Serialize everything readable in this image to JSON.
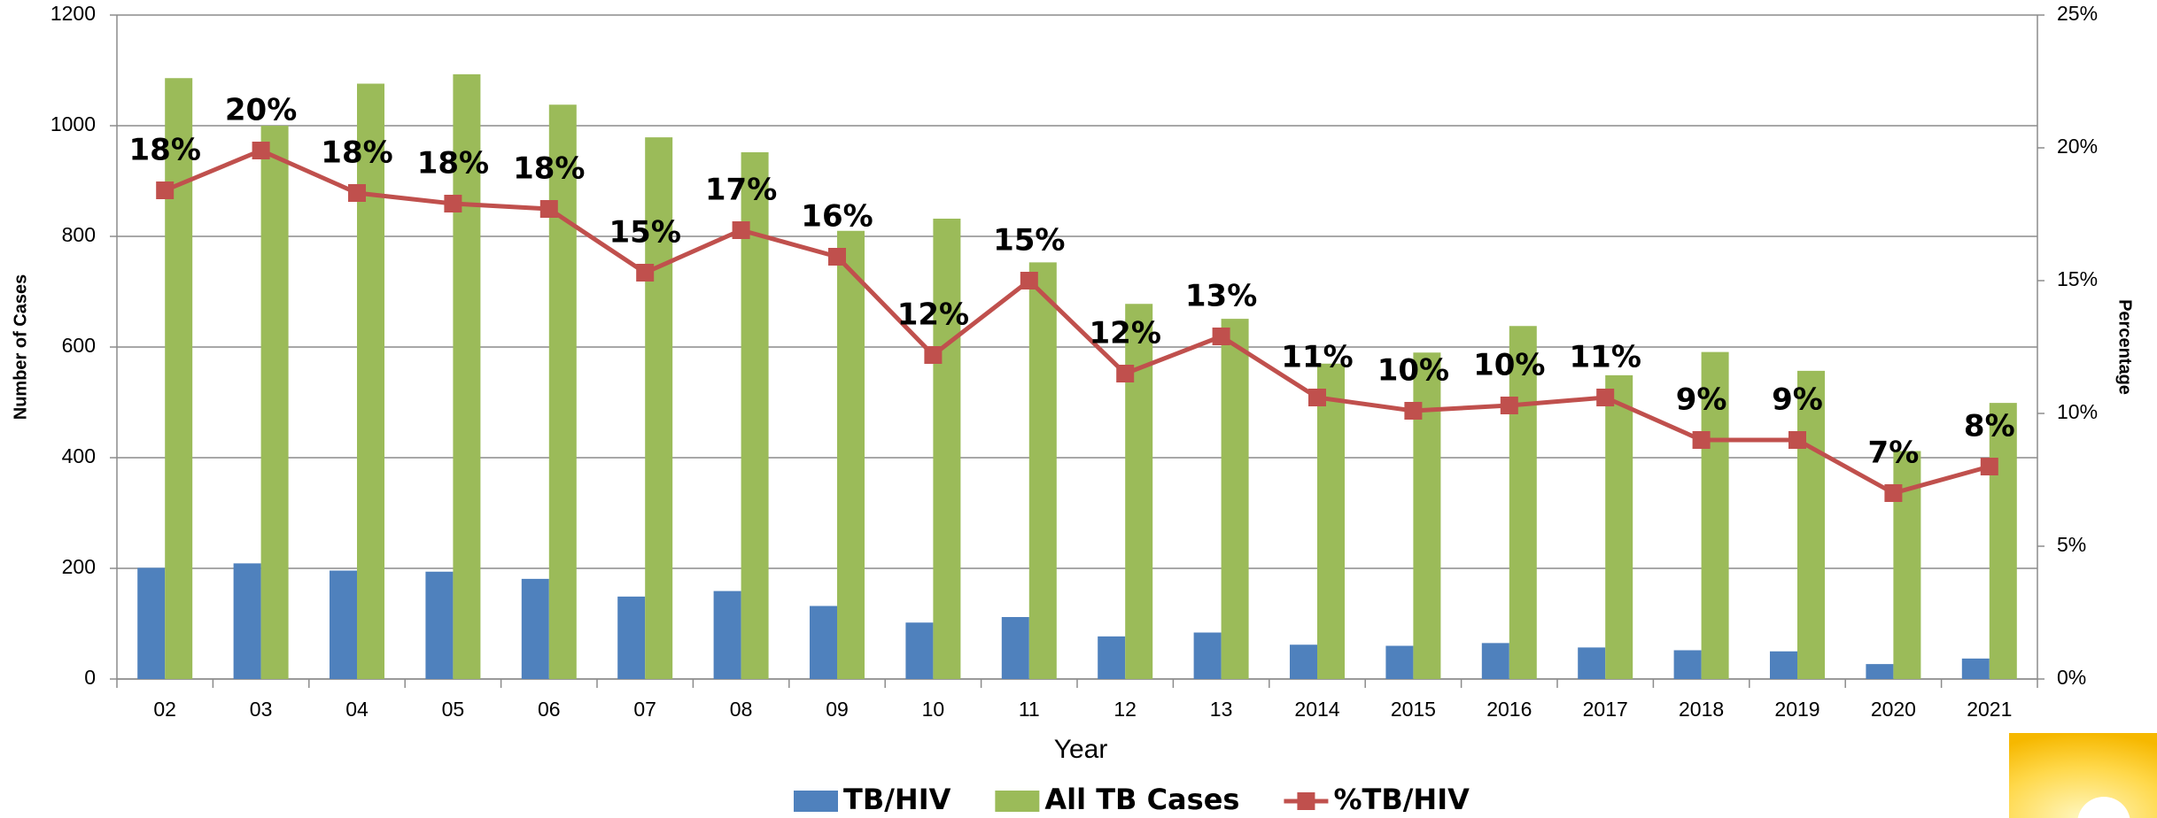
{
  "chart_data": {
    "type": "bar",
    "categories": [
      "02",
      "03",
      "04",
      "05",
      "06",
      "07",
      "08",
      "09",
      "10",
      "11",
      "12",
      "13",
      "2014",
      "2015",
      "2016",
      "2017",
      "2018",
      "2019",
      "2020",
      "2021"
    ],
    "x_label": "Year",
    "y_label": "Number of Cases",
    "y2_label": "Percentage",
    "ylim": [
      0,
      1200
    ],
    "yticks": [
      0,
      200,
      400,
      600,
      800,
      1000,
      1200
    ],
    "y2lim": [
      0,
      25
    ],
    "y2ticks": [
      {
        "value": 0,
        "label": "0%"
      },
      {
        "value": 5,
        "label": "5%"
      },
      {
        "value": 10,
        "label": "10%"
      },
      {
        "value": 15,
        "label": "15%"
      },
      {
        "value": 20,
        "label": "20%"
      },
      {
        "value": 25,
        "label": "25%"
      }
    ],
    "grid": true,
    "legend": "bottom",
    "series": [
      {
        "name": "TB/HIV",
        "color": "#4f81bd",
        "values": [
          201,
          209,
          196,
          194,
          181,
          149,
          159,
          132,
          102,
          112,
          77,
          84,
          62,
          60,
          65,
          57,
          52,
          50,
          27,
          37
        ]
      },
      {
        "name": "All TB Cases",
        "color": "#9bbb59",
        "values": [
          1086,
          1000,
          1076,
          1093,
          1038,
          979,
          952,
          810,
          832,
          753,
          678,
          651,
          570,
          590,
          638,
          549,
          591,
          557,
          412,
          499
        ]
      },
      {
        "name": "%TB/HIV",
        "color": "#c0504d",
        "type": "line",
        "axis": "y2",
        "values": [
          18.4,
          19.9,
          18.3,
          17.9,
          17.7,
          15.3,
          16.9,
          15.9,
          12.2,
          15.0,
          11.5,
          12.9,
          10.6,
          10.1,
          10.3,
          10.6,
          9.0,
          9.0,
          7.0,
          8.0
        ],
        "value_labels": [
          "18%",
          "20%",
          "18%",
          "18%",
          "18%",
          "15%",
          "17%",
          "16%",
          "12%",
          "15%",
          "12%",
          "13%",
          "11%",
          "10%",
          "10%",
          "11%",
          "9%",
          "9%",
          "7%",
          "8%"
        ]
      }
    ]
  }
}
